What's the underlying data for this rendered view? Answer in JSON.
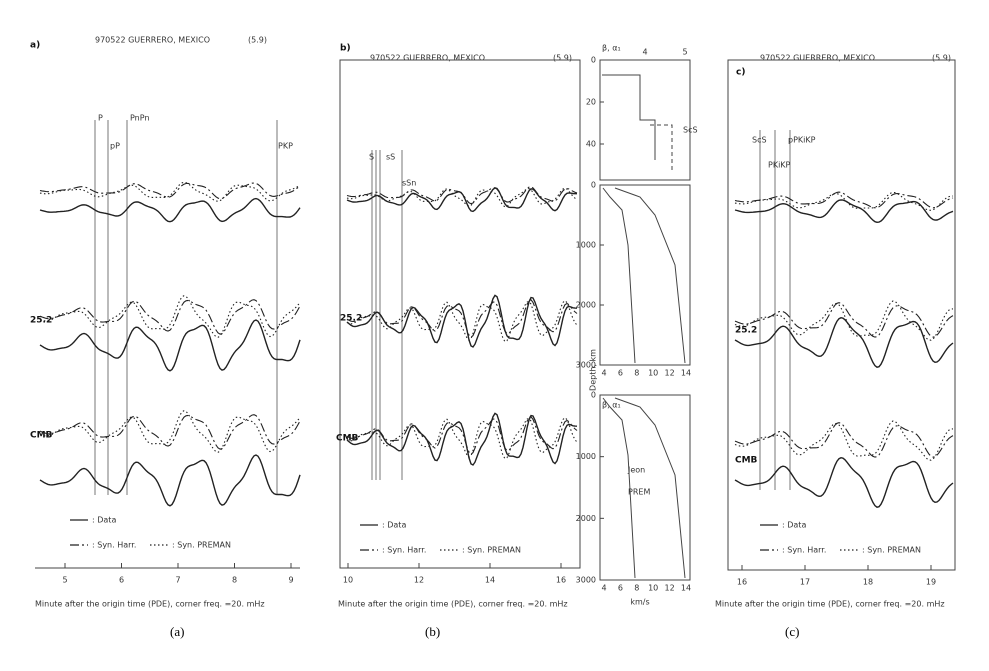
{
  "panels": [
    {
      "letter": "a)",
      "title": "970522 GUERRERO, MEXICO",
      "magnitude": "(5.9)",
      "phases": [
        "P",
        "pP",
        "PnPn",
        "PKP"
      ],
      "traces": [
        "25.2",
        "CMB"
      ],
      "xticks": [
        5,
        6,
        7,
        8,
        9
      ],
      "legend": [
        ": Data",
        ": Syn. Harr.",
        ": Syn. PREMAN"
      ],
      "xlabel": "Minute after the origin time (PDE), corner freq. =20. mHz",
      "caption": "(a)"
    },
    {
      "letter": "b)",
      "title": "970522 GUERRERO, MEXICO",
      "magnitude": "(5.9)",
      "phases": [
        "S",
        "sS",
        "sSn"
      ],
      "traces": [
        "25.2",
        "CMB"
      ],
      "xticks": [
        10,
        12,
        14,
        16
      ],
      "legend": [
        ": Data",
        ": Syn. Harr.",
        ": Syn. PREMAN"
      ],
      "xlabel": "Minute after the origin time (PDE), corner freq. =20. mHz",
      "caption": "(b)"
    },
    {
      "letter": "c)",
      "title": "970522 GUERRERO, MEXICO",
      "magnitude": "(5.9)",
      "phases": [
        "ScS",
        "PKiKP",
        "pPKiKP"
      ],
      "traces": [
        "25.2",
        "CMB"
      ],
      "xticks": [
        16,
        17,
        18,
        19
      ],
      "legend": [
        ": Data",
        ": Syn. Harr.",
        ": Syn. PREMAN"
      ],
      "xlabel": "Minute after the origin time (PDE), corner freq. =20. mHz",
      "caption": "(c)"
    }
  ],
  "profiles": {
    "top": {
      "header": "β, α₁",
      "xticks": [
        4,
        5
      ],
      "depth_ticks": [
        0,
        20,
        40
      ],
      "phase": "ScS"
    },
    "middle": {
      "xticks": [
        4,
        6,
        8,
        10,
        12,
        14
      ],
      "depth_ticks": [
        0,
        1000,
        2000,
        3000
      ]
    },
    "bottom": {
      "header": "β, α₁",
      "xticks": [
        4,
        6,
        8,
        10,
        12,
        14
      ],
      "depth_ticks": [
        0,
        1000,
        2000,
        3000
      ],
      "legend": [
        "Jeon",
        "PREM"
      ],
      "xlabel": "km/s",
      "ylabel": "Depth, km"
    }
  }
}
